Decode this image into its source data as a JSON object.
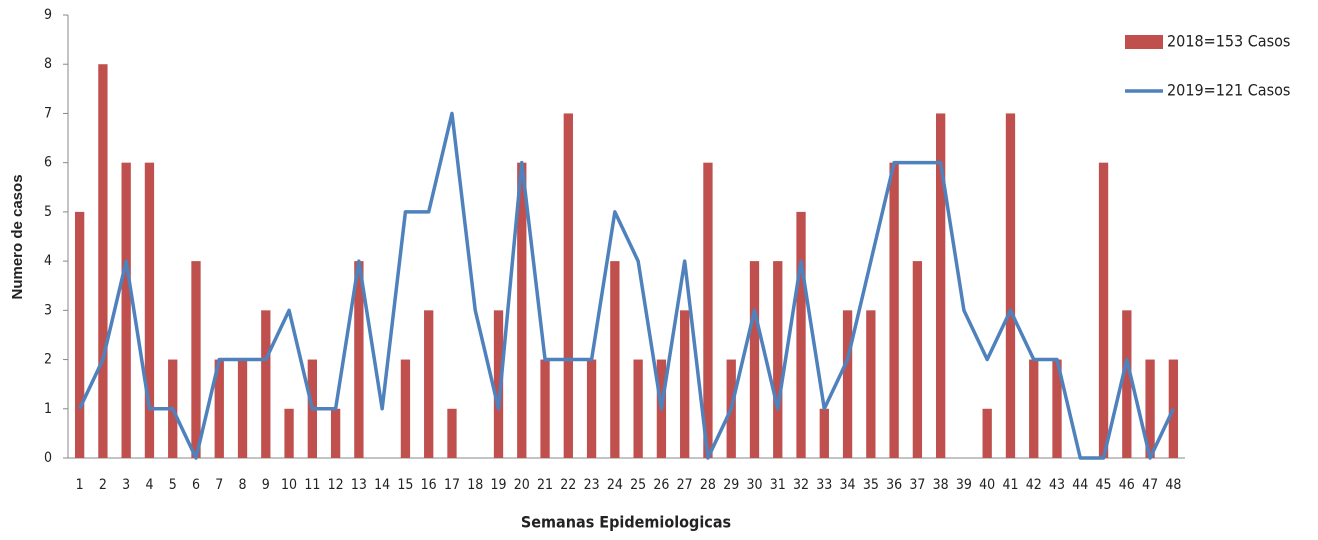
{
  "chart_data": {
    "type": "bar+line",
    "x_label": "Semanas Epidemiologicas",
    "y_label": "Numero de casos",
    "categories": [
      "1",
      "2",
      "3",
      "4",
      "5",
      "6",
      "7",
      "8",
      "9",
      "10",
      "11",
      "12",
      "13",
      "14",
      "15",
      "16",
      "17",
      "18",
      "19",
      "20",
      "21",
      "22",
      "23",
      "24",
      "25",
      "26",
      "27",
      "28",
      "29",
      "30",
      "31",
      "32",
      "33",
      "34",
      "35",
      "36",
      "37",
      "38",
      "39",
      "40",
      "41",
      "42",
      "43",
      "44",
      "45",
      "46",
      "47",
      "48"
    ],
    "series": [
      {
        "name": "2018=153 Casos",
        "type": "bar",
        "color": "#c0504d",
        "values": [
          5,
          8,
          6,
          6,
          2,
          4,
          2,
          2,
          3,
          1,
          2,
          1,
          4,
          0,
          2,
          3,
          1,
          0,
          3,
          6,
          2,
          7,
          2,
          4,
          2,
          2,
          3,
          6,
          2,
          4,
          4,
          5,
          1,
          3,
          3,
          6,
          4,
          7,
          0,
          1,
          7,
          2,
          2,
          0,
          6,
          3,
          2,
          2
        ]
      },
      {
        "name": "2019=121 Casos",
        "type": "line",
        "color": "#4f81bd",
        "values": [
          1,
          2,
          4,
          1,
          1,
          0,
          2,
          2,
          2,
          3,
          1,
          1,
          4,
          1,
          5,
          5,
          7,
          3,
          1,
          6,
          2,
          2,
          2,
          5,
          4,
          1,
          4,
          0,
          1,
          3,
          1,
          4,
          1,
          2,
          4,
          6,
          6,
          6,
          3,
          2,
          3,
          2,
          2,
          0,
          0,
          2,
          0,
          1
        ]
      }
    ],
    "ylim": [
      0,
      9
    ],
    "yticks": [
      0,
      1,
      2,
      3,
      4,
      5,
      6,
      7,
      8,
      9
    ],
    "legend": "right"
  }
}
